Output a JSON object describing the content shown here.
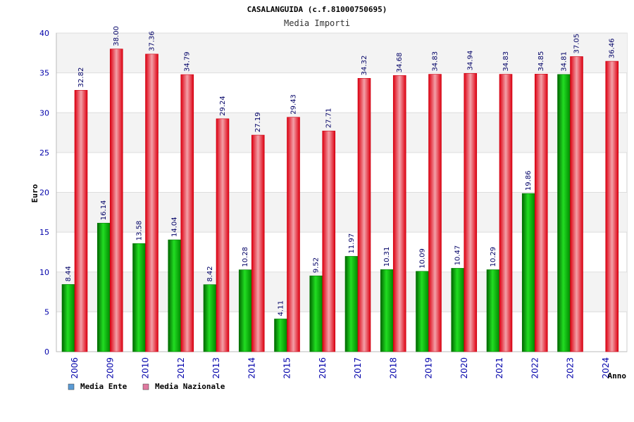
{
  "chart_data": {
    "type": "bar",
    "title": "CASALANGUIDA (c.f.81000750695)",
    "subtitle": "Media Importi",
    "xlabel": "Anno",
    "ylabel": "Euro",
    "ylim": [
      0,
      40
    ],
    "yticks": [
      "0",
      "5",
      "10",
      "15",
      "20",
      "25",
      "30",
      "35",
      "40"
    ],
    "grid": true,
    "legend_position": "bottom-left",
    "categories": [
      "2006",
      "2009",
      "2010",
      "2012",
      "2013",
      "2014",
      "2015",
      "2016",
      "2017",
      "2018",
      "2019",
      "2020",
      "2021",
      "2022",
      "2023",
      "2024"
    ],
    "series": [
      {
        "name": "Media Ente",
        "legend_color": "#5b9bd5",
        "bar_color": "#00aa00",
        "values": [
          8.44,
          16.14,
          13.58,
          14.04,
          8.42,
          10.28,
          4.11,
          9.52,
          11.97,
          10.31,
          10.09,
          10.47,
          10.29,
          19.86,
          34.81,
          null
        ],
        "labels": [
          "8.44",
          "16.14",
          "13.58",
          "14.04",
          "8.42",
          "10.28",
          "4.11",
          "9.52",
          "11.97",
          "10.31",
          "10.09",
          "10.47",
          "10.29",
          "19.86",
          "34.81",
          ""
        ]
      },
      {
        "name": "Media Nazionale",
        "legend_color": "#e07aa0",
        "bar_color": "#ee1122",
        "values": [
          32.82,
          38.0,
          37.36,
          34.79,
          29.24,
          27.19,
          29.43,
          27.71,
          34.32,
          34.68,
          34.83,
          34.94,
          34.83,
          34.85,
          37.05,
          36.46
        ],
        "labels": [
          "32.82",
          "38.00",
          "37.36",
          "34.79",
          "29.24",
          "27.19",
          "29.43",
          "27.71",
          "34.32",
          "34.68",
          "34.83",
          "34.94",
          "34.83",
          "34.85",
          "37.05",
          "36.46"
        ]
      }
    ]
  }
}
